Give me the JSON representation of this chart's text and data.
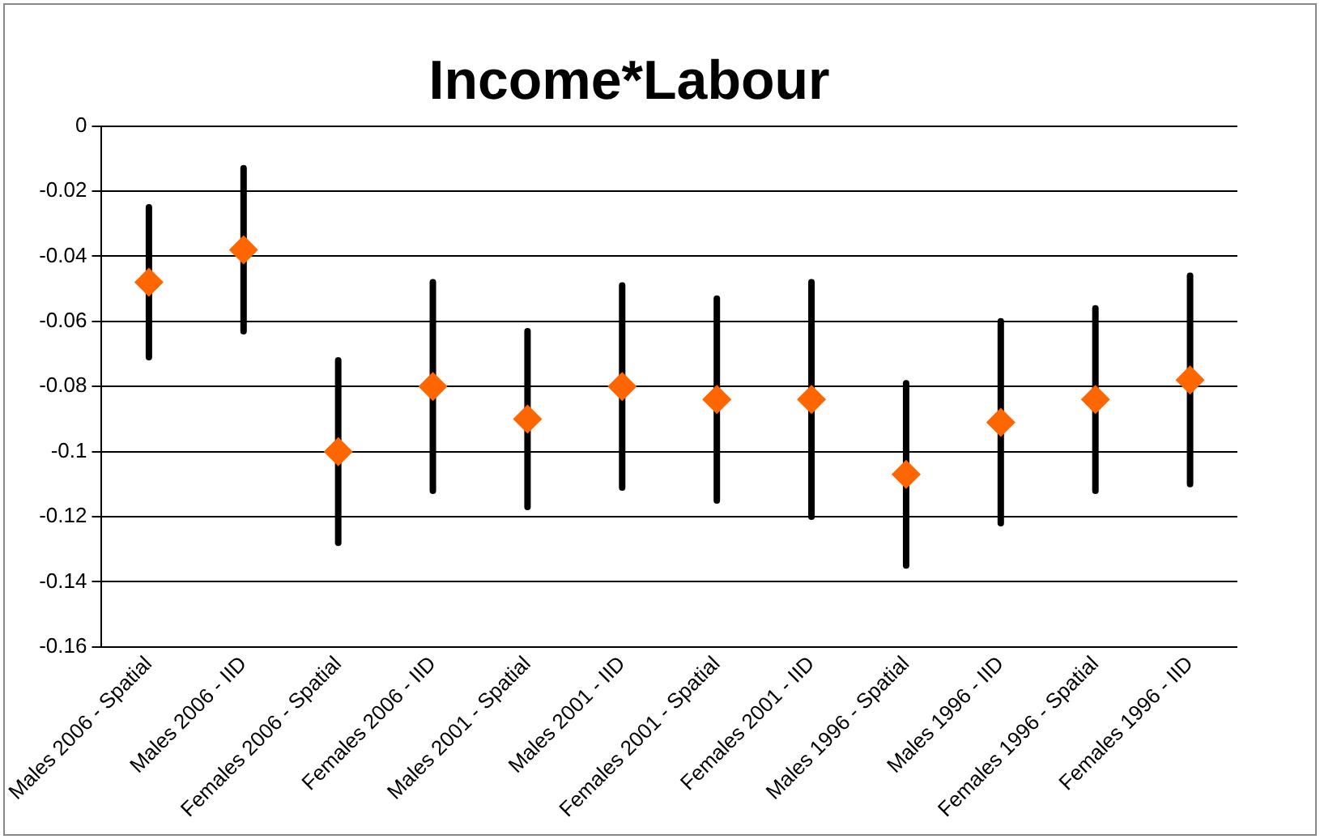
{
  "chart_data": {
    "type": "scatter",
    "title": "Income*Labour",
    "categories": [
      "Males 2006 - Spatial",
      "Males 2006 - IID",
      "Females 2006 - Spatial",
      "Females 2006 - IID",
      "Males 2001 - Spatial",
      "Males 2001 - IID",
      "Females 2001 - Spatial",
      "Females 2001 - IID",
      "Males 1996 - Spatial",
      "Males 1996 - IID",
      "Females 1996 - Spatial",
      "Females 1996 - IID"
    ],
    "values": [
      -0.048,
      -0.038,
      -0.1,
      -0.08,
      -0.09,
      -0.08,
      -0.084,
      -0.084,
      -0.107,
      -0.091,
      -0.084,
      -0.078
    ],
    "errors": [
      0.023,
      0.025,
      0.028,
      0.032,
      0.027,
      0.031,
      0.031,
      0.036,
      0.028,
      0.031,
      0.028,
      0.032
    ],
    "color": "#ff6600",
    "marker": "diamond",
    "ylim": [
      -0.16,
      0
    ],
    "yticks": [
      -0.16,
      -0.14,
      -0.12,
      -0.1,
      -0.08,
      -0.06,
      -0.04,
      -0.02,
      0
    ],
    "grid": "y",
    "legend": false
  }
}
